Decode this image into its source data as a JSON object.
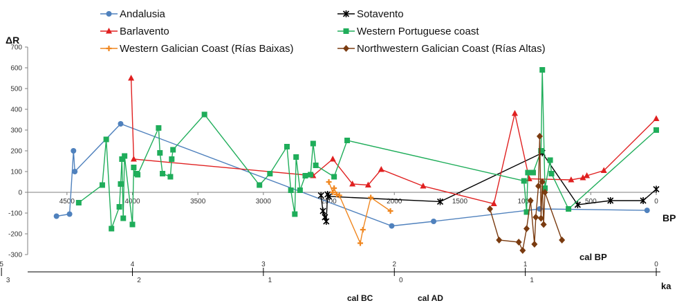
{
  "chart_data": {
    "type": "line",
    "ylabel": "ΔR",
    "xlabel": "BP",
    "secondary_axis_label": "cal BP",
    "ka_axis_label": "ka",
    "era_labels": [
      "cal BC",
      "cal AD"
    ],
    "ylim": [
      -300,
      700
    ],
    "yticks": [
      -300,
      -200,
      -100,
      0,
      100,
      200,
      300,
      400,
      500,
      600,
      700
    ],
    "xlim": [
      4800,
      0
    ],
    "xticks": [
      4500,
      4000,
      3500,
      3000,
      2500,
      2000,
      1500,
      1000,
      500,
      0
    ],
    "ka_ticks": [
      {
        "label": "5",
        "value": 5000
      },
      {
        "label": "4",
        "value": 4000
      },
      {
        "label": "3",
        "value": 3000
      },
      {
        "label": "2",
        "value": 2000
      },
      {
        "label": "1",
        "value": 1000
      },
      {
        "label": "0",
        "value": 0
      }
    ],
    "bcad_ticks": [
      {
        "label": "3",
        "value": 4950
      },
      {
        "label": "2",
        "value": 3950
      },
      {
        "label": "1",
        "value": 2950
      },
      {
        "label": "0",
        "value": 1950
      },
      {
        "label": "1",
        "value": 950
      }
    ],
    "legend_placement": "top",
    "series": [
      {
        "name": "Andalusia",
        "color": "#4f81bd",
        "marker": "circle",
        "points": [
          [
            4580,
            -115
          ],
          [
            4480,
            -105
          ],
          [
            4450,
            200
          ],
          [
            4440,
            100
          ],
          [
            4090,
            330
          ],
          [
            2020,
            -162
          ],
          [
            1700,
            -140
          ],
          [
            890,
            -80
          ],
          [
            70,
            -87
          ]
        ]
      },
      {
        "name": "Sotavento",
        "color": "#000000",
        "marker": "star",
        "points": [
          [
            2560,
            -15
          ],
          [
            2545,
            -90
          ],
          [
            2530,
            -120
          ],
          [
            2520,
            -140
          ],
          [
            2510,
            -10
          ],
          [
            2500,
            -20
          ],
          [
            1650,
            -45
          ],
          [
            870,
            190
          ],
          [
            600,
            -60
          ],
          [
            350,
            -40
          ],
          [
            100,
            -40
          ],
          [
            0,
            15
          ]
        ]
      },
      {
        "name": "Barlavento",
        "color": "#e02020",
        "marker": "triangle",
        "points": [
          [
            4010,
            550
          ],
          [
            3990,
            160
          ],
          [
            2620,
            80
          ],
          [
            2470,
            160
          ],
          [
            2320,
            40
          ],
          [
            2200,
            35
          ],
          [
            2100,
            110
          ],
          [
            1780,
            30
          ],
          [
            1240,
            -55
          ],
          [
            1080,
            380
          ],
          [
            970,
            65
          ],
          [
            650,
            60
          ],
          [
            560,
            70
          ],
          [
            530,
            80
          ],
          [
            400,
            105
          ],
          [
            0,
            355
          ]
        ]
      },
      {
        "name": "Western Portuguese coast",
        "color": "#1fad5a",
        "marker": "square",
        "points": [
          [
            4410,
            -50
          ],
          [
            4230,
            35
          ],
          [
            4200,
            255
          ],
          [
            4160,
            -175
          ],
          [
            4100,
            -70
          ],
          [
            4090,
            40
          ],
          [
            4080,
            160
          ],
          [
            4070,
            -125
          ],
          [
            4060,
            175
          ],
          [
            4000,
            -155
          ],
          [
            3990,
            120
          ],
          [
            3970,
            90
          ],
          [
            3960,
            85
          ],
          [
            3800,
            310
          ],
          [
            3790,
            190
          ],
          [
            3770,
            90
          ],
          [
            3710,
            75
          ],
          [
            3700,
            160
          ],
          [
            3690,
            205
          ],
          [
            3450,
            375
          ],
          [
            3030,
            35
          ],
          [
            2950,
            90
          ],
          [
            2820,
            220
          ],
          [
            2790,
            10
          ],
          [
            2760,
            -105
          ],
          [
            2750,
            170
          ],
          [
            2720,
            10
          ],
          [
            2680,
            80
          ],
          [
            2640,
            85
          ],
          [
            2620,
            235
          ],
          [
            2600,
            130
          ],
          [
            2460,
            75
          ],
          [
            2360,
            250
          ],
          [
            1010,
            55
          ],
          [
            990,
            -95
          ],
          [
            980,
            95
          ],
          [
            940,
            95
          ],
          [
            880,
            200
          ],
          [
            870,
            590
          ],
          [
            850,
            20
          ],
          [
            810,
            155
          ],
          [
            800,
            90
          ],
          [
            670,
            -80
          ],
          [
            0,
            300
          ]
        ]
      },
      {
        "name": "Western Galician Coast (Rías Baixas)",
        "color": "#f0861e",
        "marker": "cross",
        "points": [
          [
            2500,
            50
          ],
          [
            2470,
            0
          ],
          [
            2460,
            20
          ],
          [
            2440,
            -10
          ],
          [
            2420,
            -15
          ],
          [
            2260,
            -245
          ],
          [
            2240,
            -180
          ],
          [
            2180,
            -25
          ],
          [
            2030,
            -90
          ]
        ]
      },
      {
        "name": "Northwestern Galician Coast (Rías Altas)",
        "color": "#7a3b10",
        "marker": "diamond",
        "points": [
          [
            1270,
            -80
          ],
          [
            1200,
            -230
          ],
          [
            1050,
            -240
          ],
          [
            1020,
            -280
          ],
          [
            990,
            -175
          ],
          [
            960,
            -40
          ],
          [
            930,
            -250
          ],
          [
            920,
            -120
          ],
          [
            900,
            30
          ],
          [
            890,
            270
          ],
          [
            880,
            -125
          ],
          [
            870,
            50
          ],
          [
            860,
            -155
          ],
          [
            850,
            0
          ],
          [
            720,
            -230
          ]
        ]
      }
    ]
  }
}
